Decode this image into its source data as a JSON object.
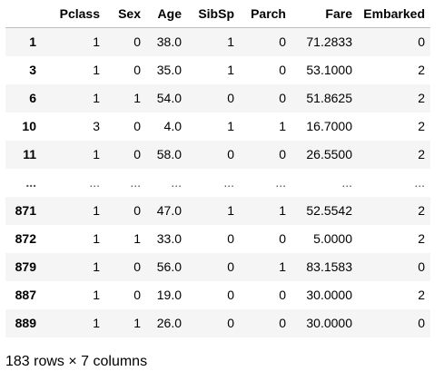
{
  "table": {
    "columns": [
      "",
      "Pclass",
      "Sex",
      "Age",
      "SibSp",
      "Parch",
      "Fare",
      "Embarked"
    ],
    "rows": [
      [
        "1",
        "1",
        "0",
        "38.0",
        "1",
        "0",
        "71.2833",
        "0"
      ],
      [
        "3",
        "1",
        "0",
        "35.0",
        "1",
        "0",
        "53.1000",
        "2"
      ],
      [
        "6",
        "1",
        "1",
        "54.0",
        "0",
        "0",
        "51.8625",
        "2"
      ],
      [
        "10",
        "3",
        "0",
        "4.0",
        "1",
        "1",
        "16.7000",
        "2"
      ],
      [
        "11",
        "1",
        "0",
        "58.0",
        "0",
        "0",
        "26.5500",
        "2"
      ],
      [
        "...",
        "...",
        "...",
        "...",
        "...",
        "...",
        "...",
        "..."
      ],
      [
        "871",
        "1",
        "0",
        "47.0",
        "1",
        "1",
        "52.5542",
        "2"
      ],
      [
        "872",
        "1",
        "1",
        "33.0",
        "0",
        "0",
        "5.0000",
        "2"
      ],
      [
        "879",
        "1",
        "0",
        "56.0",
        "0",
        "1",
        "83.1583",
        "0"
      ],
      [
        "887",
        "1",
        "0",
        "19.0",
        "0",
        "0",
        "30.0000",
        "2"
      ],
      [
        "889",
        "1",
        "1",
        "26.0",
        "0",
        "0",
        "30.0000",
        "0"
      ]
    ]
  },
  "shape_text": "183 rows × 7 columns"
}
